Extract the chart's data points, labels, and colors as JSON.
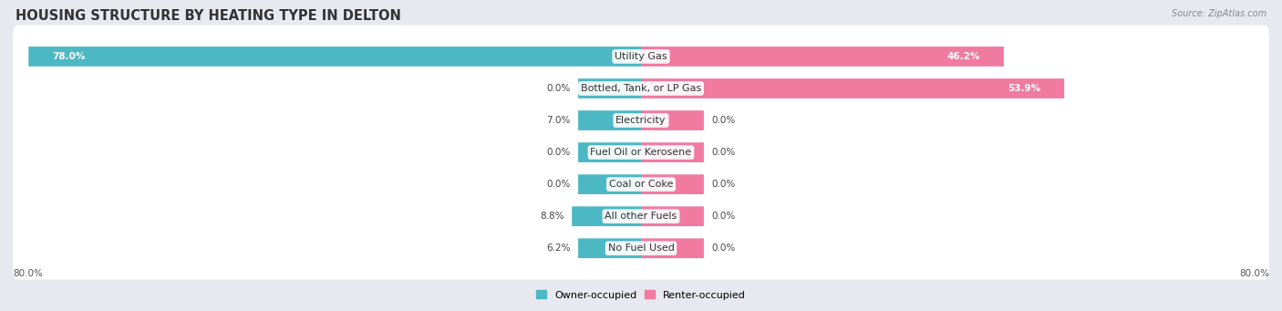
{
  "title": "HOUSING STRUCTURE BY HEATING TYPE IN DELTON",
  "source": "Source: ZipAtlas.com",
  "categories": [
    "Utility Gas",
    "Bottled, Tank, or LP Gas",
    "Electricity",
    "Fuel Oil or Kerosene",
    "Coal or Coke",
    "All other Fuels",
    "No Fuel Used"
  ],
  "owner_values": [
    78.0,
    0.0,
    7.0,
    0.0,
    0.0,
    8.8,
    6.2
  ],
  "renter_values": [
    46.2,
    53.9,
    0.0,
    0.0,
    0.0,
    0.0,
    0.0
  ],
  "owner_color": "#4cb8c4",
  "renter_color": "#f07aa0",
  "owner_label": "Owner-occupied",
  "renter_label": "Renter-occupied",
  "axis_min": -80.0,
  "axis_max": 80.0,
  "axis_left_label": "80.0%",
  "axis_right_label": "80.0%",
  "bg_color": "#e8e8f0",
  "row_bg_color": "#f5f5fa",
  "bar_height": 0.62,
  "title_fontsize": 10.5,
  "category_fontsize": 8.0,
  "value_label_fontsize": 7.5,
  "min_bar_width": 8.0,
  "zero_bar_width": 8.0
}
